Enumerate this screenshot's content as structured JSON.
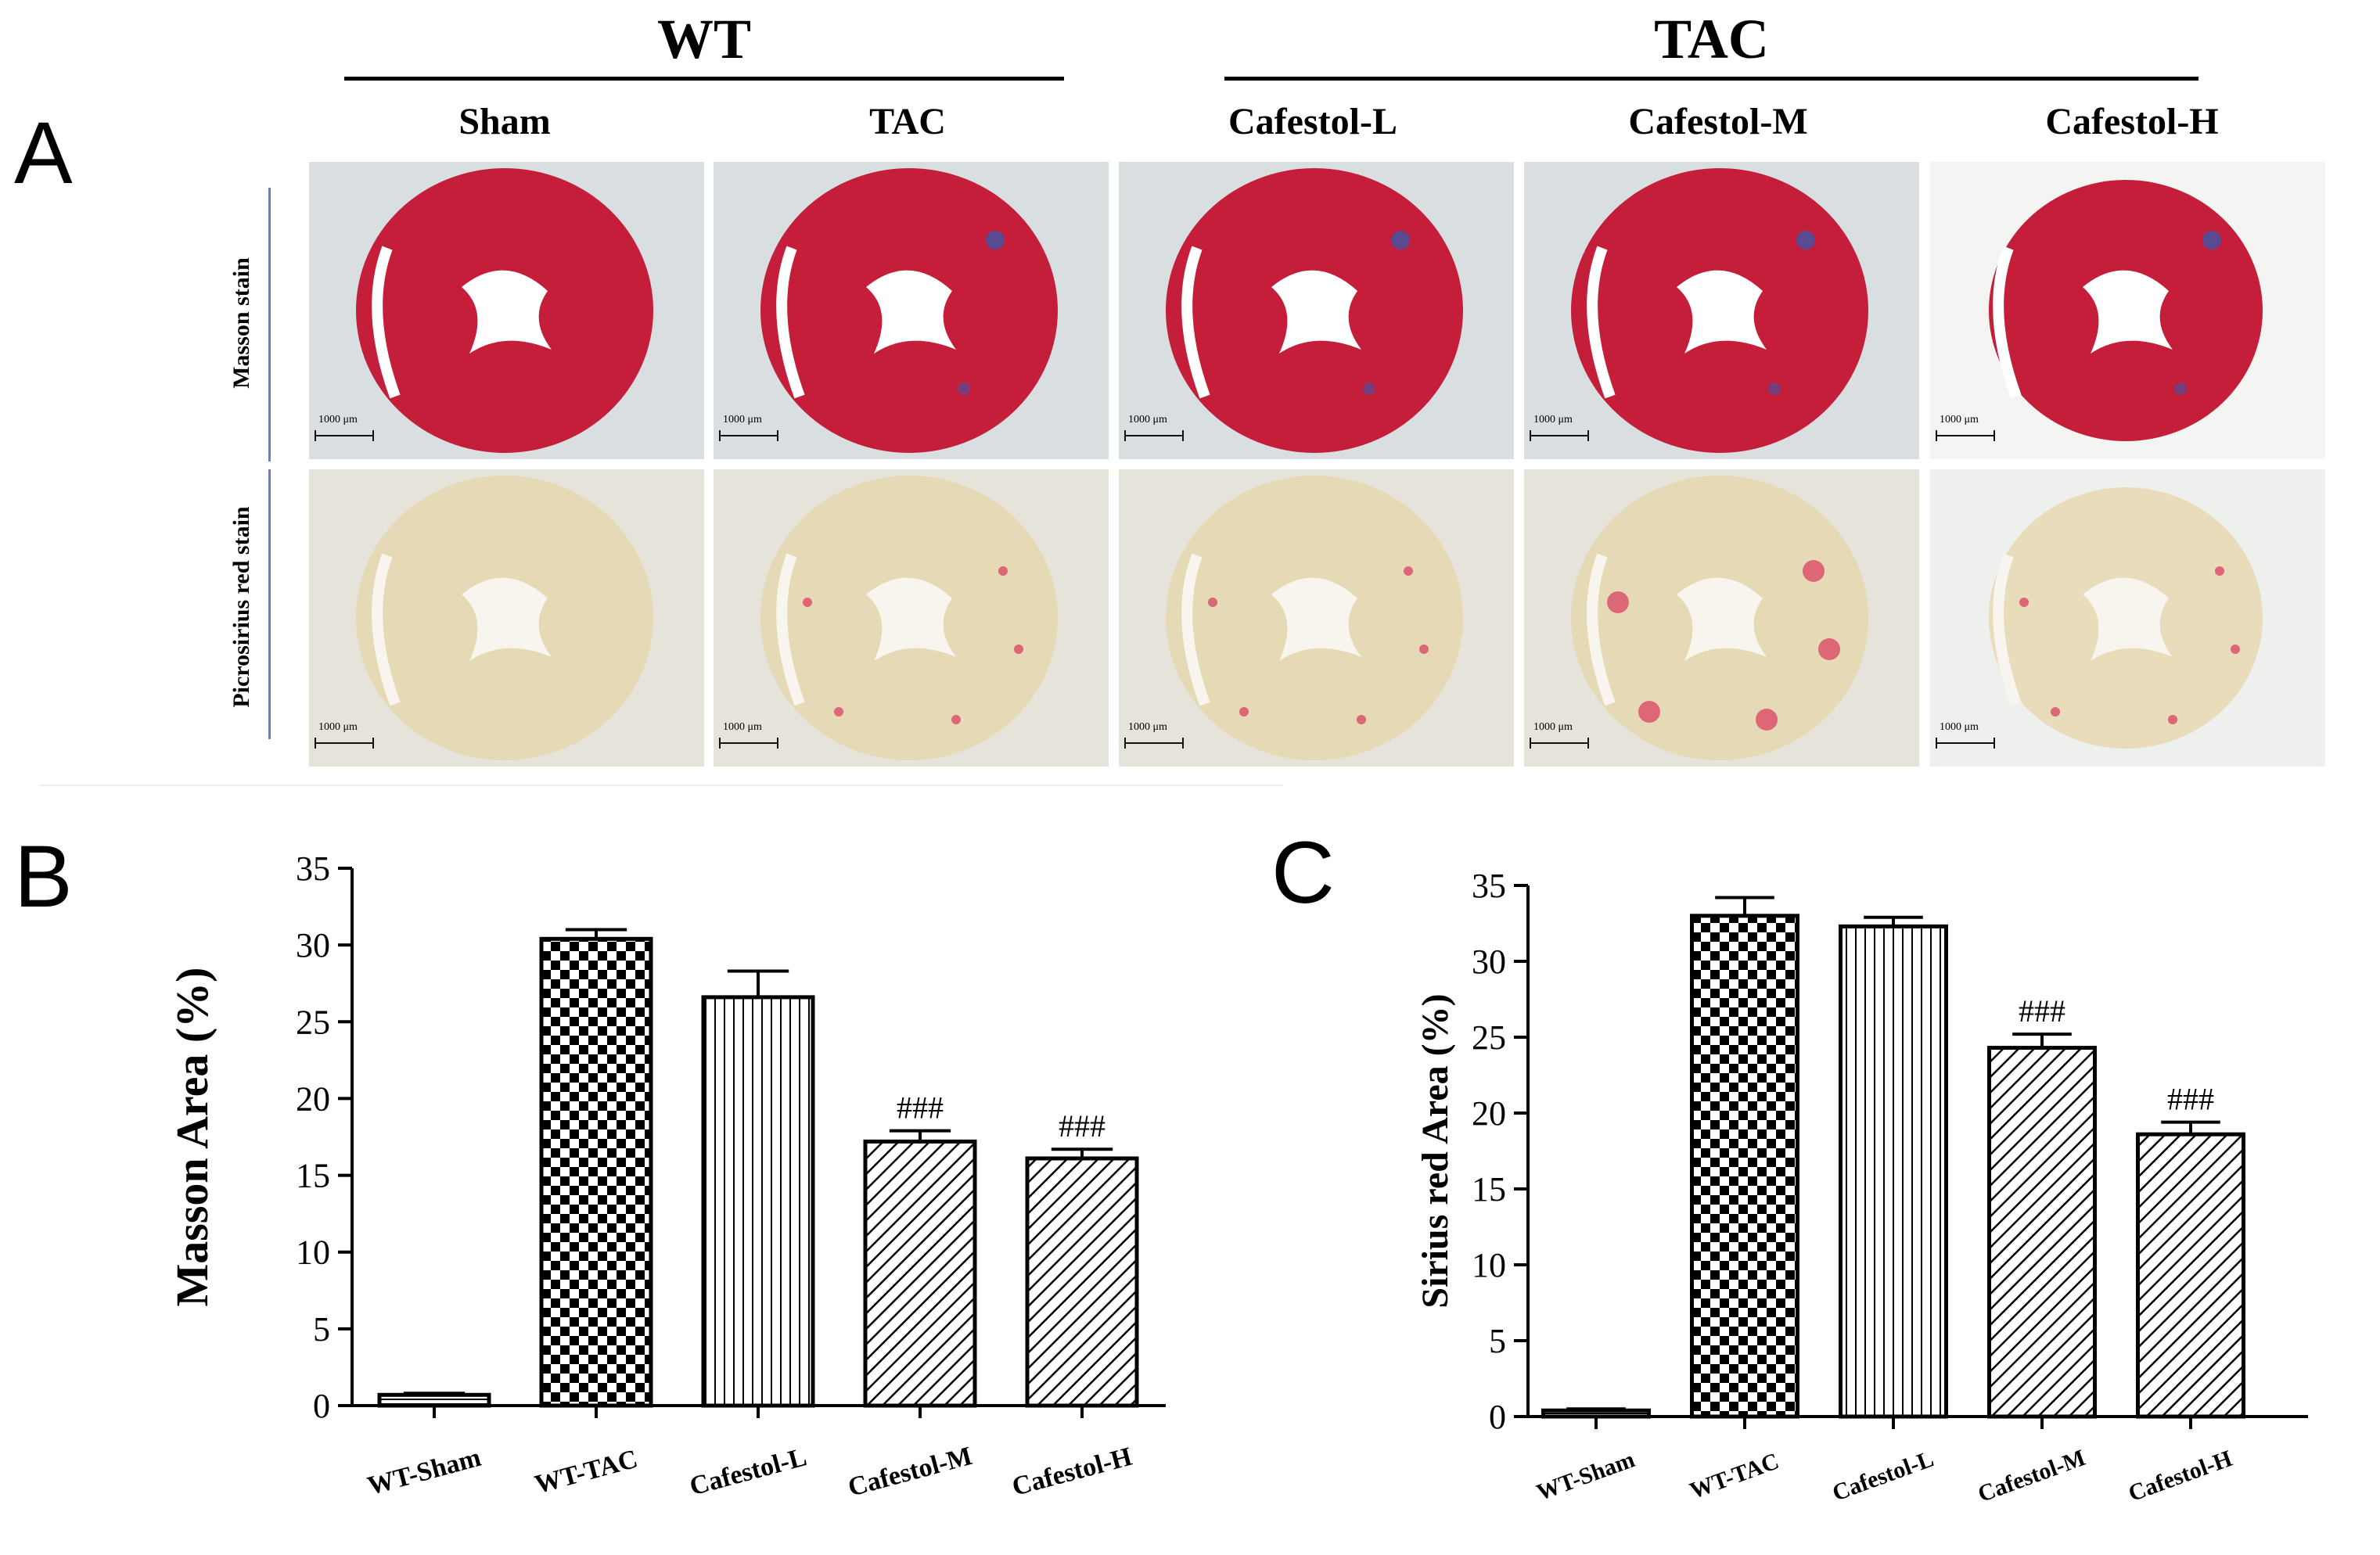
{
  "panels": {
    "A": "A",
    "B": "B",
    "C": "C"
  },
  "groups": [
    {
      "label": "WT"
    },
    {
      "label": "TAC"
    }
  ],
  "columns": [
    "Sham",
    "TAC",
    "Cafestol-L",
    "Cafestol-M",
    "Cafestol-H"
  ],
  "rows": [
    "Masson stain",
    "Picrosirius red stain"
  ],
  "scale_bar": "1000 μm",
  "colors": {
    "masson_tissue": "#c41e3a",
    "masson_collagen": "#3f55a8",
    "sirius_tissue": "#e6d6aa",
    "sirius_collagen": "#d9345c",
    "row_line": "#6b7ecb"
  },
  "chart_data": [
    {
      "type": "bar",
      "panel": "B",
      "title": "",
      "xlabel": "",
      "ylabel": "Masson Area (%)",
      "categories": [
        "WT-Sham",
        "WT-TAC",
        "Cafestol-L",
        "Cafestol-M",
        "Cafestol-H"
      ],
      "values": [
        0.7,
        30.4,
        26.6,
        17.2,
        16.1
      ],
      "errors": [
        0.1,
        0.6,
        1.7,
        0.7,
        0.6
      ],
      "annotations": [
        "",
        "",
        "",
        "###",
        "###"
      ],
      "patterns": [
        "hline",
        "checker",
        "vline",
        "diag",
        "diag"
      ],
      "ylim": [
        0,
        35
      ],
      "yticks": [
        0,
        5,
        10,
        15,
        20,
        25,
        30,
        35
      ]
    },
    {
      "type": "bar",
      "panel": "C",
      "title": "",
      "xlabel": "",
      "ylabel": "Sirius red  Area (%)",
      "categories": [
        "WT-Sham",
        "WT-TAC",
        "Cafestol-L",
        "Cafestol-M",
        "Cafestol-H"
      ],
      "values": [
        0.4,
        33.0,
        32.3,
        24.3,
        18.6
      ],
      "errors": [
        0.1,
        1.2,
        0.6,
        0.9,
        0.8
      ],
      "annotations": [
        "",
        "",
        "",
        "###",
        "###"
      ],
      "patterns": [
        "hline",
        "checker",
        "vline",
        "diag",
        "diag"
      ],
      "ylim": [
        0,
        35
      ],
      "yticks": [
        0,
        5,
        10,
        15,
        20,
        25,
        30,
        35
      ]
    }
  ]
}
